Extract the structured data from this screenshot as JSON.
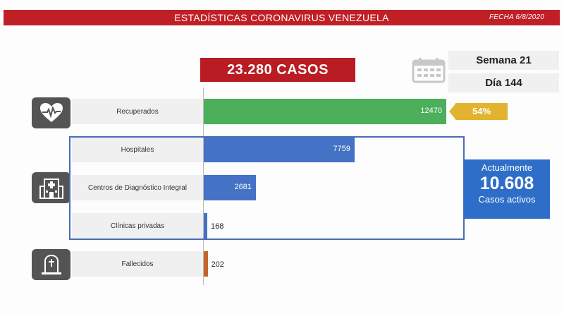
{
  "header": {
    "title": "ESTADÍSTICAS CORONAVIRUS VENEZUELA",
    "date": "FECHA 6/8/2020"
  },
  "total_label": "23.280 CASOS",
  "week_label": "Semana 21",
  "day_label": "Día 144",
  "recovered_pct": "54%",
  "active": {
    "line1": "Actualmente",
    "value": "10.608",
    "line3": "Casos activos"
  },
  "icons": {
    "calendar": "calendar-icon",
    "recovered": "heart-pulse-icon",
    "facilities": "hospital-building-icon",
    "deceased": "tombstone-icon"
  },
  "colors": {
    "header": "#c01f26",
    "recovered": "#4caf5b",
    "facility": "#4472c4",
    "deceased": "#c5642a",
    "badge": "#e2b32f",
    "active": "#2e6ec8"
  },
  "chart_data": {
    "type": "bar",
    "orientation": "horizontal",
    "categories": [
      "Recuperados",
      "Hospitales",
      "Centros de Diagnóstico Integral",
      "Clínicas privadas",
      "Fallecidos"
    ],
    "values": [
      12470,
      7759,
      2681,
      168,
      202
    ],
    "value_labels": [
      "12470",
      "7759",
      "2681",
      "168",
      "202"
    ],
    "xlim": [
      0,
      12470
    ]
  }
}
